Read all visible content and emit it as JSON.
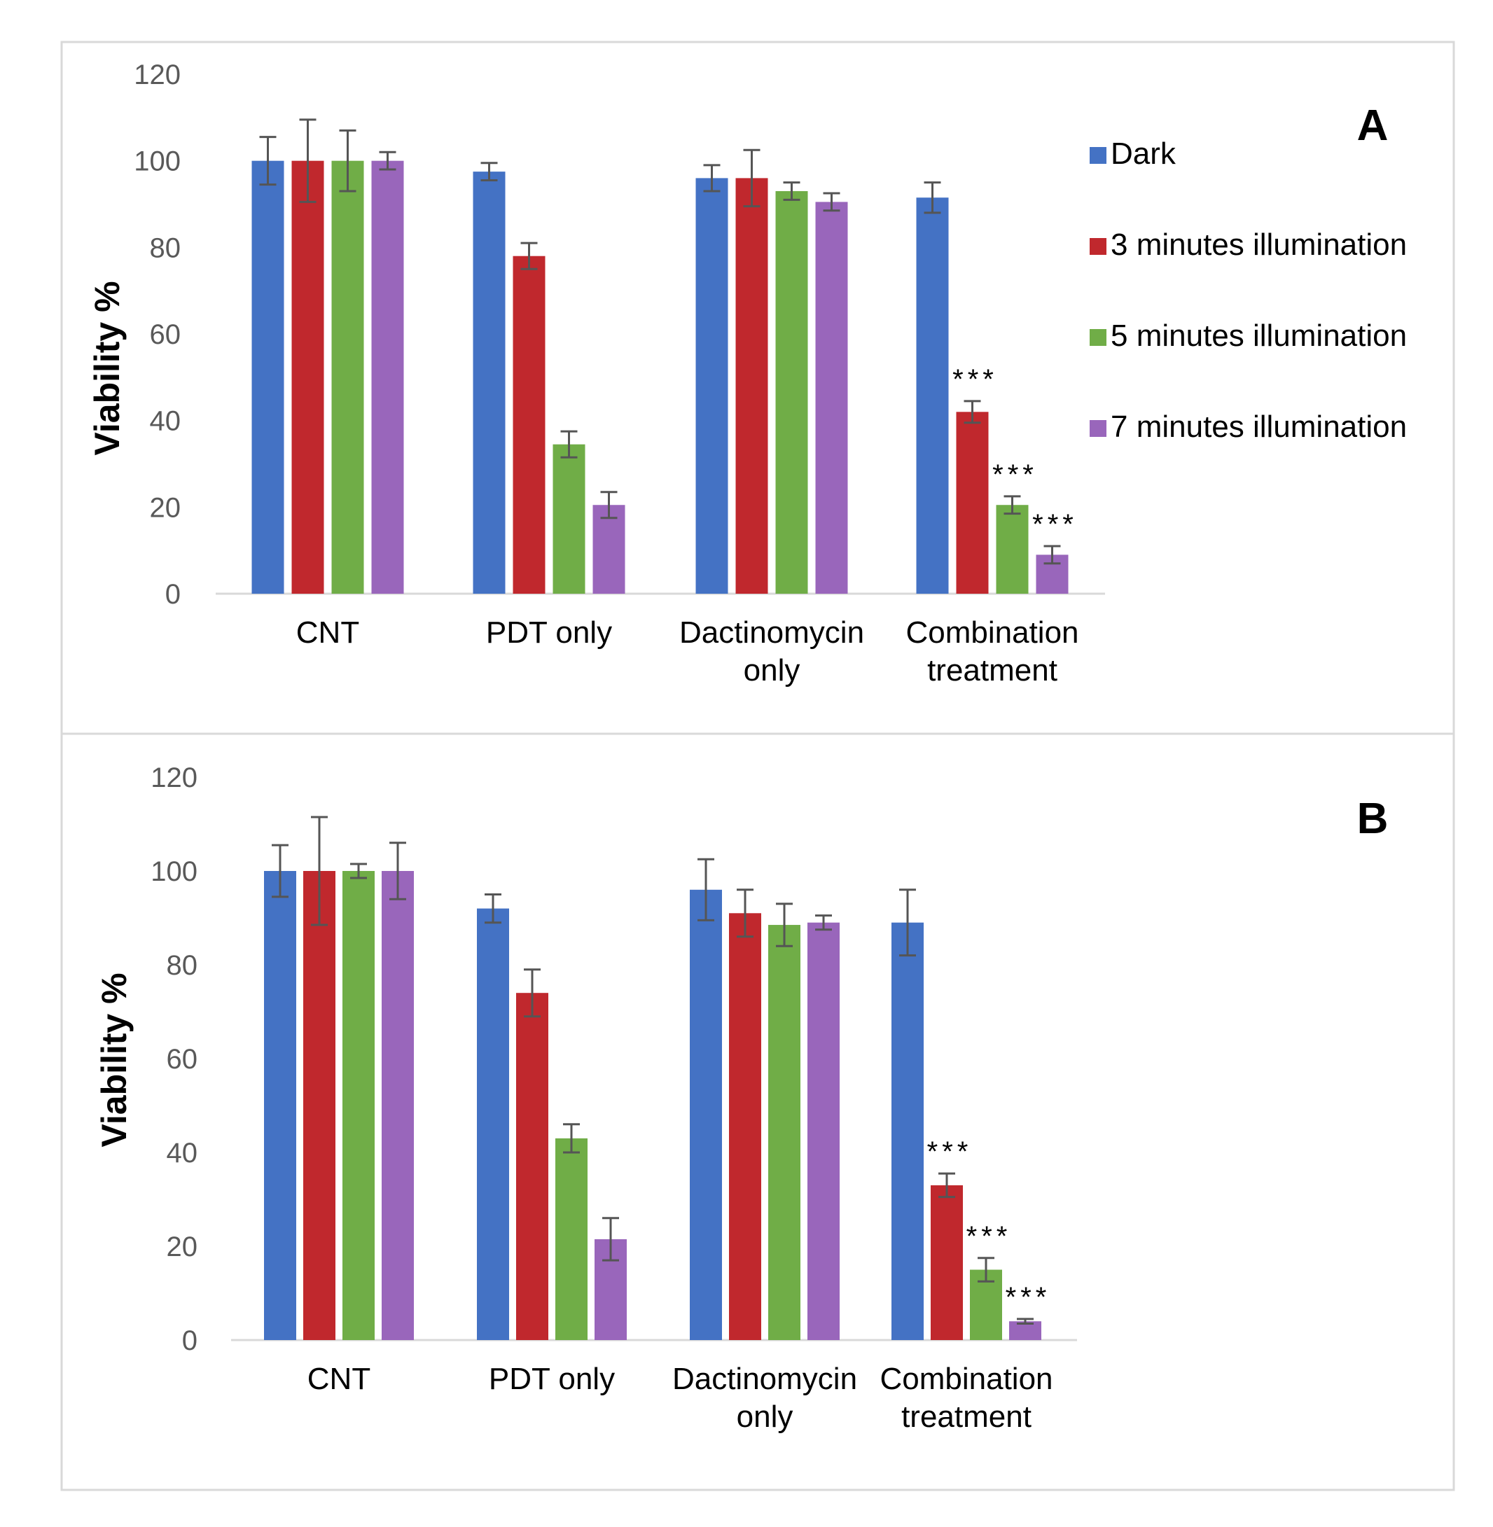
{
  "chart_data": [
    {
      "type": "bar",
      "panel_label": "A",
      "ylabel": "Viability %",
      "ylim": [
        0,
        120
      ],
      "yticks": [
        0,
        20,
        40,
        60,
        80,
        100,
        120
      ],
      "categories": [
        [
          "CNT"
        ],
        [
          "PDT only"
        ],
        [
          "Dactinomycin",
          "only"
        ],
        [
          "Combination",
          "treatment"
        ]
      ],
      "series": [
        {
          "name": "Dark",
          "color": "#4472C4",
          "values": [
            100,
            97.5,
            96,
            91.5
          ],
          "errors": [
            5.5,
            2,
            3,
            3.5
          ],
          "annotations": [
            "",
            "",
            "",
            ""
          ]
        },
        {
          "name": "3 minutes illumination",
          "color": "#C0282D",
          "values": [
            100,
            78,
            96,
            42
          ],
          "errors": [
            9.5,
            3,
            6.5,
            2.5
          ],
          "annotations": [
            "",
            "",
            "",
            "***"
          ]
        },
        {
          "name": "5 minutes illumination",
          "color": "#70AD47",
          "values": [
            100,
            34.5,
            93,
            20.5
          ],
          "errors": [
            7,
            3,
            2,
            2
          ],
          "annotations": [
            "",
            "",
            "",
            "***"
          ]
        },
        {
          "name": "7 minutes illumination",
          "color": "#9966BB",
          "values": [
            100,
            20.5,
            90.5,
            9
          ],
          "errors": [
            2,
            3,
            2,
            2
          ],
          "annotations": [
            "",
            "",
            "",
            "***"
          ]
        }
      ],
      "legend_position": "right"
    },
    {
      "type": "bar",
      "panel_label": "B",
      "ylabel": "Viability %",
      "ylim": [
        0,
        120
      ],
      "yticks": [
        0,
        20,
        40,
        60,
        80,
        100,
        120
      ],
      "categories": [
        [
          "CNT"
        ],
        [
          "PDT only"
        ],
        [
          "Dactinomycin",
          "only"
        ],
        [
          "Combination",
          "treatment"
        ]
      ],
      "series": [
        {
          "name": "Dark",
          "color": "#4472C4",
          "values": [
            100,
            92,
            96,
            89
          ],
          "errors": [
            5.5,
            3,
            6.5,
            7
          ],
          "annotations": [
            "",
            "",
            "",
            ""
          ]
        },
        {
          "name": "3 minutes illumination",
          "color": "#C0282D",
          "values": [
            100,
            74,
            91,
            33
          ],
          "errors": [
            11.5,
            5,
            5,
            2.5
          ],
          "annotations": [
            "",
            "",
            "",
            "***"
          ]
        },
        {
          "name": "5 minutes illumination",
          "color": "#70AD47",
          "values": [
            100,
            43,
            88.5,
            15
          ],
          "errors": [
            1.5,
            3,
            4.5,
            2.5
          ],
          "annotations": [
            "",
            "",
            "",
            "***"
          ]
        },
        {
          "name": "7 minutes illumination",
          "color": "#9966BB",
          "values": [
            100,
            21.5,
            89,
            4
          ],
          "errors": [
            6,
            4.5,
            1.5,
            0.5
          ],
          "annotations": [
            "",
            "",
            "",
            "***"
          ]
        }
      ]
    }
  ]
}
